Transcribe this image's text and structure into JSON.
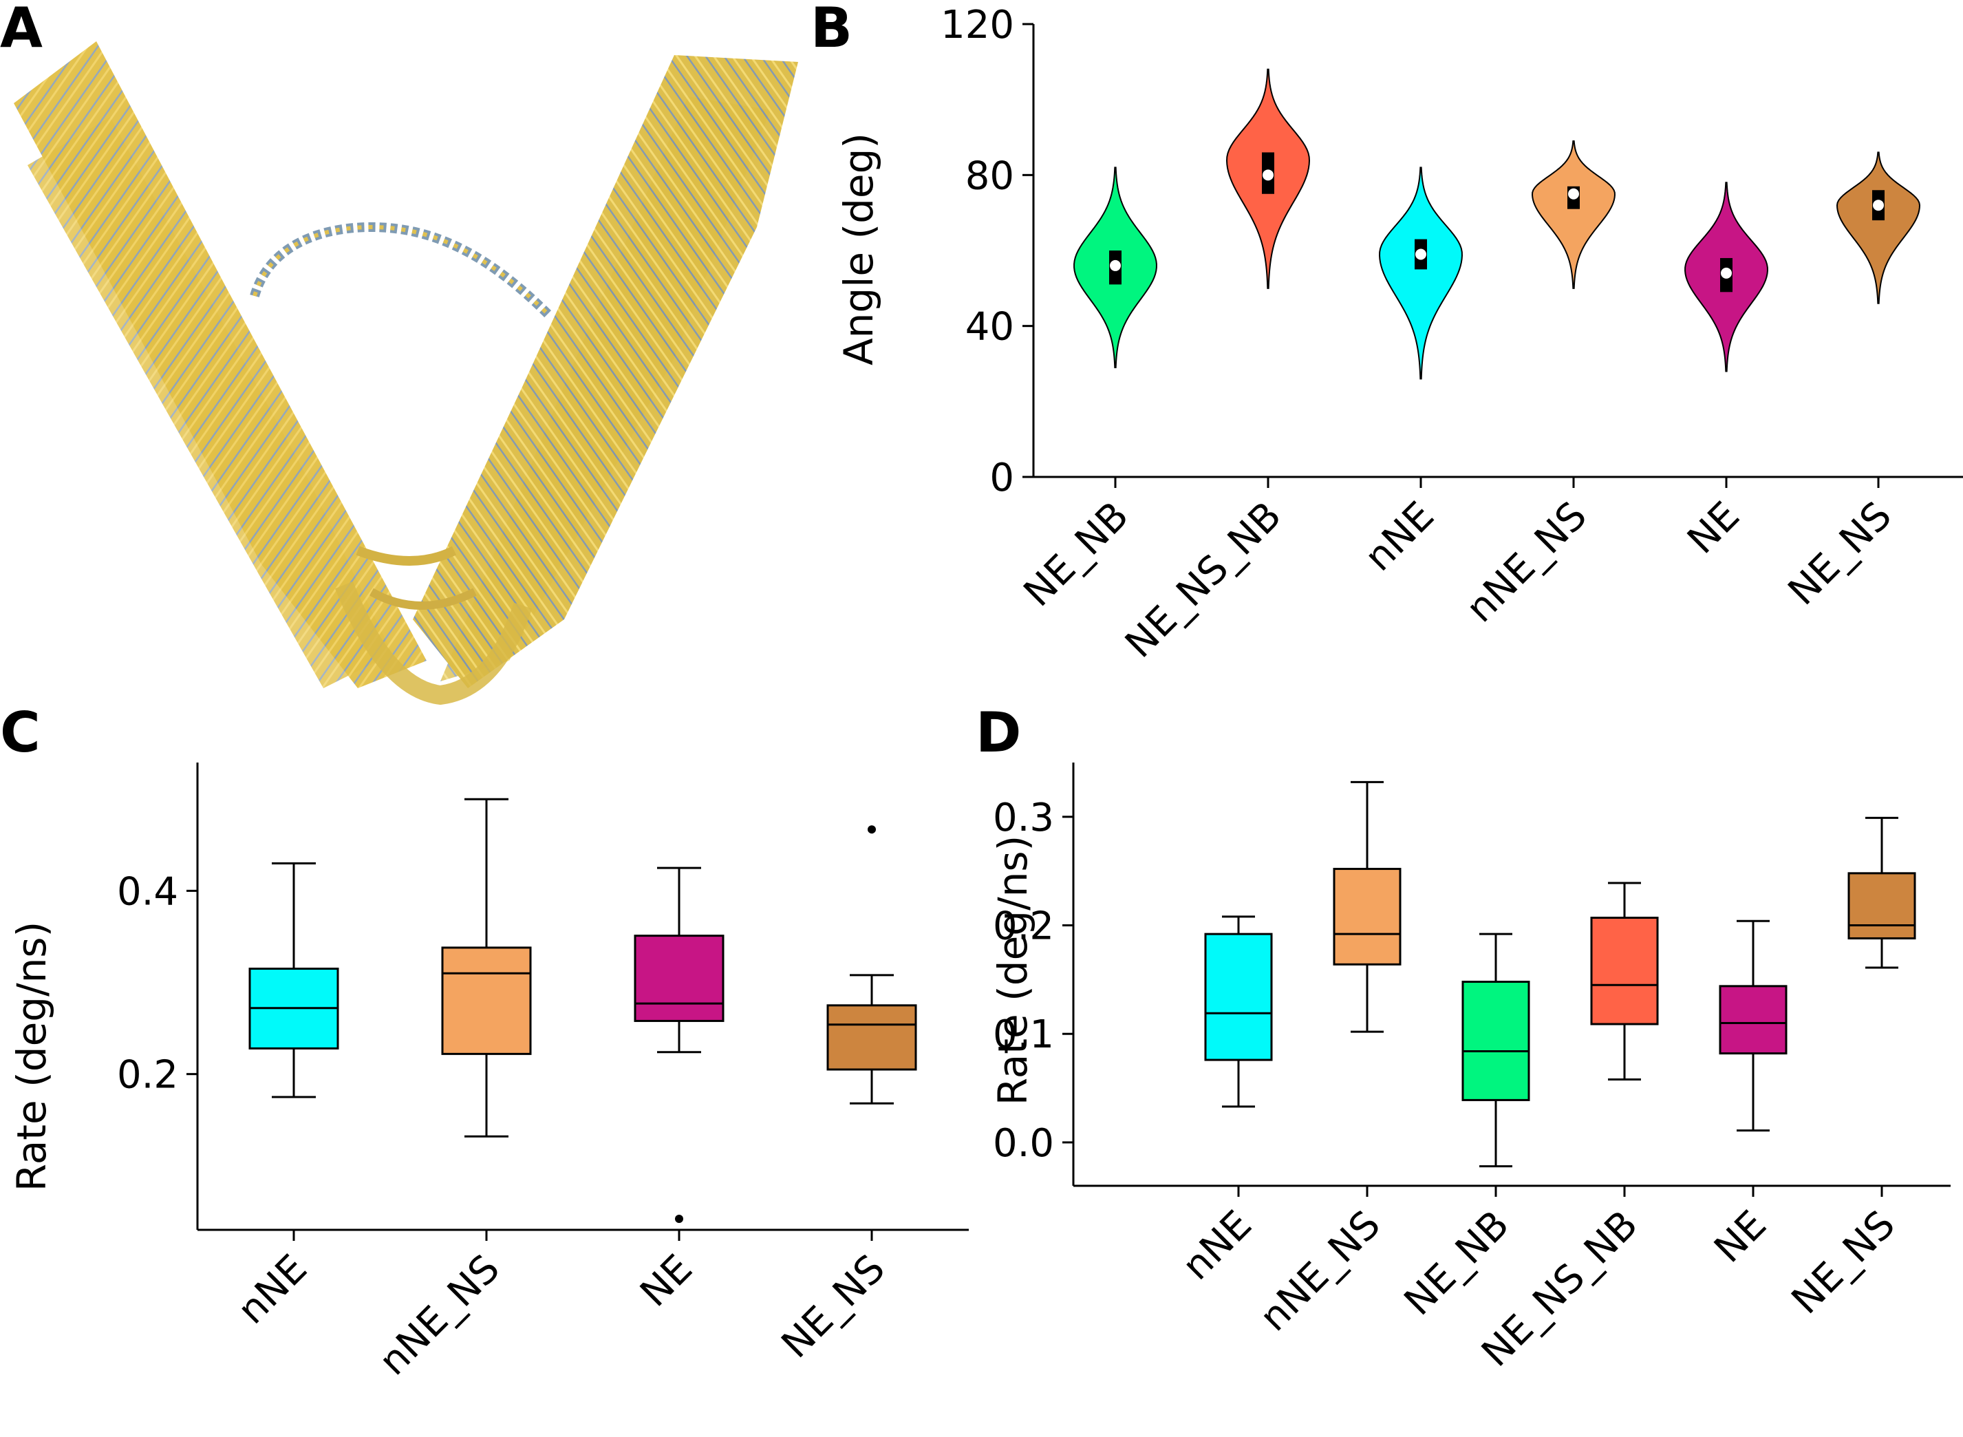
{
  "panels": {
    "A": "A",
    "B": "B",
    "C": "C",
    "D": "D"
  },
  "colors": {
    "NE_NB": "#00F57F",
    "NE_NS_NB": "#FF6347",
    "nNE": "#00FAFA",
    "nNE_NS": "#F4A460",
    "NE": "#C71585",
    "NE_NS": "#CD853F"
  },
  "chart_data": [
    {
      "panel": "B",
      "type": "violin",
      "ylabel": "Angle (deg)",
      "ylim": [
        0,
        120
      ],
      "yticks": [
        "0",
        "40",
        "80",
        "120"
      ],
      "categories": [
        "NE_NB",
        "NE_NS_NB",
        "nNE",
        "nNE_NS",
        "NE",
        "NE_NS"
      ],
      "violins": [
        {
          "min": 29,
          "max": 82,
          "q1": 51,
          "median": 56,
          "q3": 60,
          "mode": 56,
          "width": 0.2
        },
        {
          "min": 50,
          "max": 108,
          "q1": 75,
          "median": 80,
          "q3": 86,
          "mode": 84,
          "width": 0.2
        },
        {
          "min": 26,
          "max": 82,
          "q1": 55,
          "median": 59,
          "q3": 63,
          "mode": 59,
          "width": 0.2
        },
        {
          "min": 50,
          "max": 89,
          "q1": 71,
          "median": 75,
          "q3": 77,
          "mode": 75,
          "width": 0.2
        },
        {
          "min": 28,
          "max": 78,
          "q1": 49,
          "median": 54,
          "q3": 58,
          "mode": 55,
          "width": 0.2
        },
        {
          "min": 46,
          "max": 86,
          "q1": 68,
          "median": 72,
          "q3": 76,
          "mode": 72,
          "width": 0.2
        }
      ]
    },
    {
      "panel": "C",
      "type": "box",
      "ylabel": "Rate (deg/ns)",
      "ylim": [
        0.03,
        0.54
      ],
      "yticks": [
        "0.2",
        "0.4"
      ],
      "categories": [
        "nNE",
        "nNE_NS",
        "NE",
        "NE_NS"
      ],
      "boxes": [
        {
          "whislo": 0.175,
          "q1": 0.228,
          "med": 0.272,
          "q3": 0.315,
          "whishi": 0.43,
          "fliers": []
        },
        {
          "whislo": 0.132,
          "q1": 0.222,
          "med": 0.31,
          "q3": 0.338,
          "whishi": 0.5,
          "fliers": []
        },
        {
          "whislo": 0.224,
          "q1": 0.258,
          "med": 0.277,
          "q3": 0.351,
          "whishi": 0.425,
          "fliers": [
            0.042
          ]
        },
        {
          "whislo": 0.168,
          "q1": 0.205,
          "med": 0.254,
          "q3": 0.275,
          "whishi": 0.308,
          "fliers": [
            0.467
          ]
        }
      ]
    },
    {
      "panel": "D",
      "type": "box",
      "ylabel": "Rate (deg/ns)",
      "ylim": [
        -0.04,
        0.35
      ],
      "yticks": [
        "0.0",
        "0.1",
        "0.2",
        "0.3"
      ],
      "categories": [
        "nNE",
        "nNE_NS",
        "NE_NB",
        "NE_NS_NB",
        "NE",
        "NE_NS"
      ],
      "boxes": [
        {
          "whislo": 0.033,
          "q1": 0.076,
          "med": 0.119,
          "q3": 0.192,
          "whishi": 0.208,
          "fliers": []
        },
        {
          "whislo": 0.102,
          "q1": 0.164,
          "med": 0.192,
          "q3": 0.252,
          "whishi": 0.332,
          "fliers": []
        },
        {
          "whislo": -0.022,
          "q1": 0.039,
          "med": 0.084,
          "q3": 0.148,
          "whishi": 0.192,
          "fliers": []
        },
        {
          "whislo": 0.058,
          "q1": 0.109,
          "med": 0.145,
          "q3": 0.207,
          "whishi": 0.239,
          "fliers": []
        },
        {
          "whislo": 0.011,
          "q1": 0.082,
          "med": 0.11,
          "q3": 0.144,
          "whishi": 0.204,
          "fliers": []
        },
        {
          "whislo": 0.161,
          "q1": 0.188,
          "med": 0.2,
          "q3": 0.248,
          "whishi": 0.299,
          "fliers": []
        }
      ]
    }
  ]
}
